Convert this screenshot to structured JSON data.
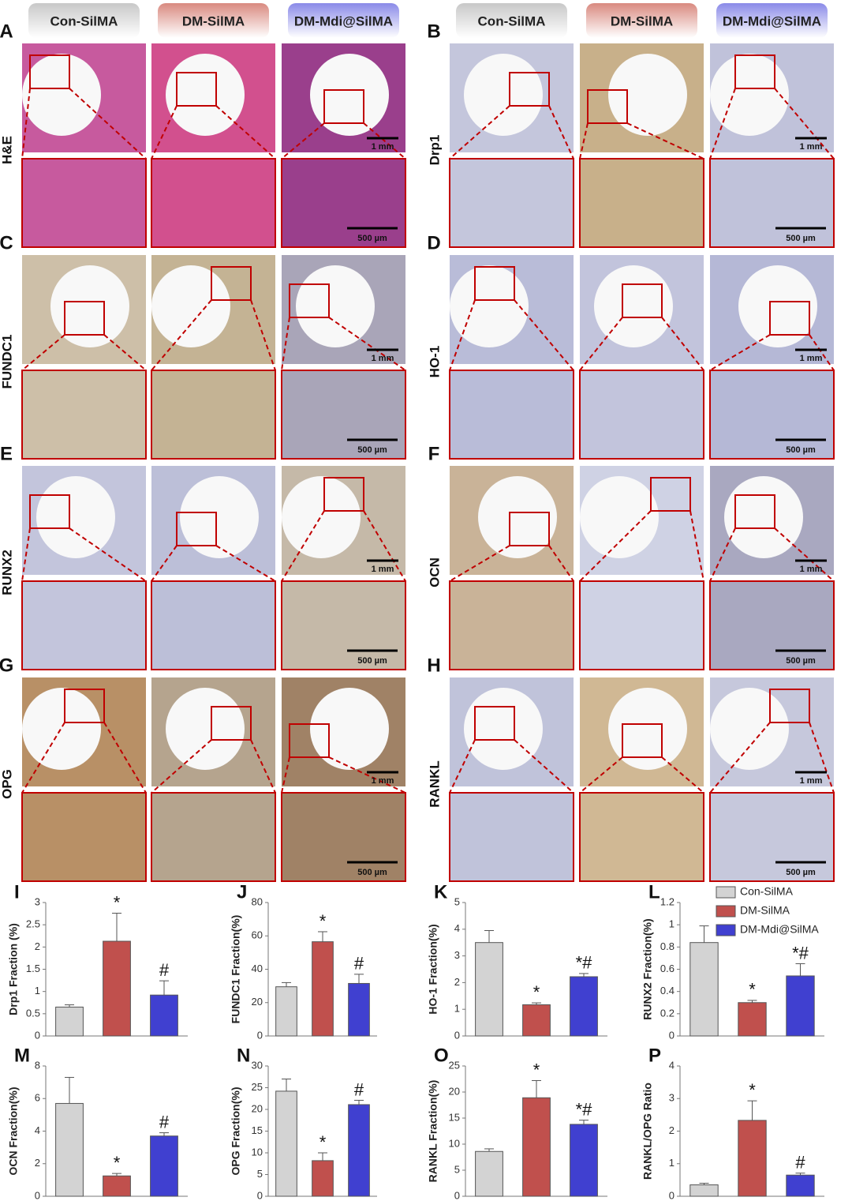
{
  "figure": {
    "group_headers": [
      "Con-SilMA",
      "DM-SilMA",
      "DM-Mdi@SilMA"
    ],
    "panels": [
      {
        "letter": "A",
        "stain": "H&E",
        "scale_top": "1 mm",
        "scale_bottom": "500 µm"
      },
      {
        "letter": "B",
        "stain": "Drp1",
        "scale_top": "1 mm",
        "scale_bottom": "500 µm"
      },
      {
        "letter": "C",
        "stain": "FUNDC1",
        "scale_top": "1 mm",
        "scale_bottom": "500 µm"
      },
      {
        "letter": "D",
        "stain": "HO-1",
        "scale_top": "1 mm",
        "scale_bottom": "500 µm"
      },
      {
        "letter": "E",
        "stain": "RUNX2",
        "scale_top": "1 mm",
        "scale_bottom": "500 µm"
      },
      {
        "letter": "F",
        "stain": "OCN",
        "scale_top": "1 mm",
        "scale_bottom": "500 µm"
      },
      {
        "letter": "G",
        "stain": "OPG",
        "scale_top": "1 mm",
        "scale_bottom": "500 µm"
      },
      {
        "letter": "H",
        "stain": "RANKL",
        "scale_top": "1 mm",
        "scale_bottom": "500 µm"
      }
    ]
  },
  "legend": [
    {
      "name": "Con-SilMA",
      "color": "#d3d3d3"
    },
    {
      "name": "DM-SilMA",
      "color": "#c0504d"
    },
    {
      "name": "DM-Mdi@SilMA",
      "color": "#4040d0"
    }
  ],
  "chart_data": [
    {
      "type": "bar",
      "letter": "I",
      "y_label": "Drp1 Fraction (%)",
      "values": [
        0.65,
        2.13,
        0.92
      ],
      "errors": [
        0.05,
        0.63,
        0.32
      ],
      "labels": [
        null,
        "*",
        "#"
      ],
      "ylim": [
        0,
        3
      ],
      "yticks": [
        0,
        0.5,
        1,
        1.5,
        2,
        2.5,
        3
      ]
    },
    {
      "type": "bar",
      "letter": "J",
      "y_label": "FUNDC1 Fraction(%)",
      "values": [
        29.5,
        56.5,
        31.5
      ],
      "errors": [
        2.5,
        6,
        5.5
      ],
      "labels": [
        null,
        "*",
        "#"
      ],
      "ylim": [
        0,
        80
      ],
      "yticks": [
        0,
        20,
        40,
        60,
        80
      ]
    },
    {
      "type": "bar",
      "letter": "K",
      "y_label": "HO-1 Fraction(%)",
      "values": [
        3.5,
        1.17,
        2.22
      ],
      "errors": [
        0.45,
        0.07,
        0.12
      ],
      "labels": [
        null,
        "*",
        "*#"
      ],
      "ylim": [
        0,
        5
      ],
      "yticks": [
        0,
        1,
        2,
        3,
        4,
        5
      ]
    },
    {
      "type": "bar",
      "letter": "L",
      "y_label": "RUNX2 Fraction(%)",
      "values": [
        0.84,
        0.3,
        0.54
      ],
      "errors": [
        0.15,
        0.02,
        0.11
      ],
      "labels": [
        null,
        "*",
        "*#"
      ],
      "ylim": [
        0,
        1.2
      ],
      "yticks": [
        0,
        0.2,
        0.4,
        0.6,
        0.8,
        1,
        1.2
      ]
    },
    {
      "type": "bar",
      "letter": "M",
      "y_label": "OCN Fraction(%)",
      "values": [
        5.7,
        1.25,
        3.7
      ],
      "errors": [
        1.6,
        0.15,
        0.2
      ],
      "labels": [
        null,
        "*",
        "#"
      ],
      "ylim": [
        0,
        8
      ],
      "yticks": [
        0,
        2,
        4,
        6,
        8
      ]
    },
    {
      "type": "bar",
      "letter": "N",
      "y_label": "OPG Fraction(%)",
      "values": [
        24.2,
        8.2,
        21.1
      ],
      "errors": [
        2.8,
        1.8,
        1
      ],
      "labels": [
        null,
        "*",
        "#"
      ],
      "ylim": [
        0,
        30
      ],
      "yticks": [
        0,
        5,
        10,
        15,
        20,
        25,
        30
      ]
    },
    {
      "type": "bar",
      "letter": "O",
      "y_label": "RANKL Fraction(%)",
      "values": [
        8.6,
        18.9,
        13.8
      ],
      "errors": [
        0.5,
        3.3,
        0.8
      ],
      "labels": [
        null,
        "*",
        "*#"
      ],
      "ylim": [
        0,
        25
      ],
      "yticks": [
        0,
        5,
        10,
        15,
        20,
        25
      ]
    },
    {
      "type": "bar",
      "letter": "P",
      "y_label": "RANKL/OPG Ratio",
      "values": [
        0.35,
        2.33,
        0.65
      ],
      "errors": [
        0.05,
        0.6,
        0.06
      ],
      "labels": [
        null,
        "*",
        "#"
      ],
      "ylim": [
        0,
        4
      ],
      "yticks": [
        0,
        1,
        2,
        3,
        4
      ]
    }
  ]
}
